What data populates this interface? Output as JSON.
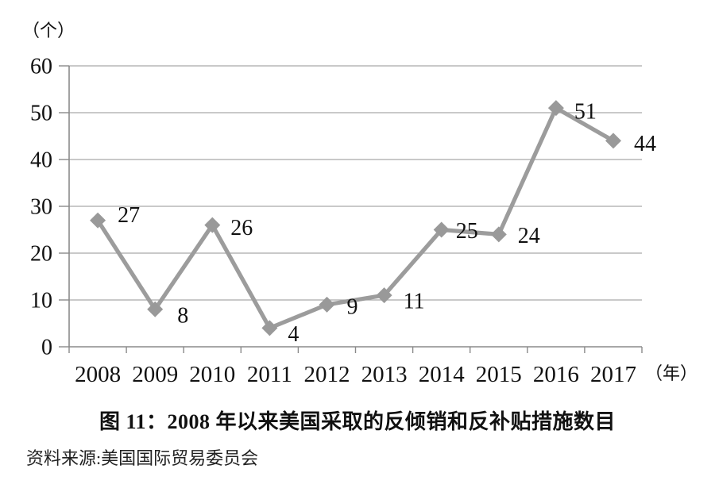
{
  "figure": {
    "caption": "图 11：2008 年以来美国采取的反倾销和反补贴措施数目",
    "source_note": "资料来源:美国国际贸易委员会"
  },
  "chart_data": {
    "type": "line",
    "title": "图 11：2008 年以来美国采取的反倾销和反补贴措施数目",
    "source_note": "资料来源:美国国际贸易委员会",
    "categories": [
      "2008",
      "2009",
      "2010",
      "2011",
      "2012",
      "2013",
      "2014",
      "2015",
      "2016",
      "2017"
    ],
    "values": [
      27,
      8,
      26,
      4,
      9,
      11,
      25,
      24,
      51,
      44
    ],
    "data_labels_visible": true,
    "y_axis": {
      "unit_label": "（个）",
      "min": 0,
      "max": 60,
      "ticks": [
        0,
        10,
        20,
        30,
        40,
        50,
        60
      ]
    },
    "x_axis": {
      "unit_label": "（年）"
    },
    "grid": "horizontal",
    "legend_position": "none",
    "colors": {
      "line": "#9c9c9c",
      "marker": "#999999",
      "gridline": "#a9a9a9",
      "axis": "#8a8a8a",
      "text": "#111111"
    }
  }
}
